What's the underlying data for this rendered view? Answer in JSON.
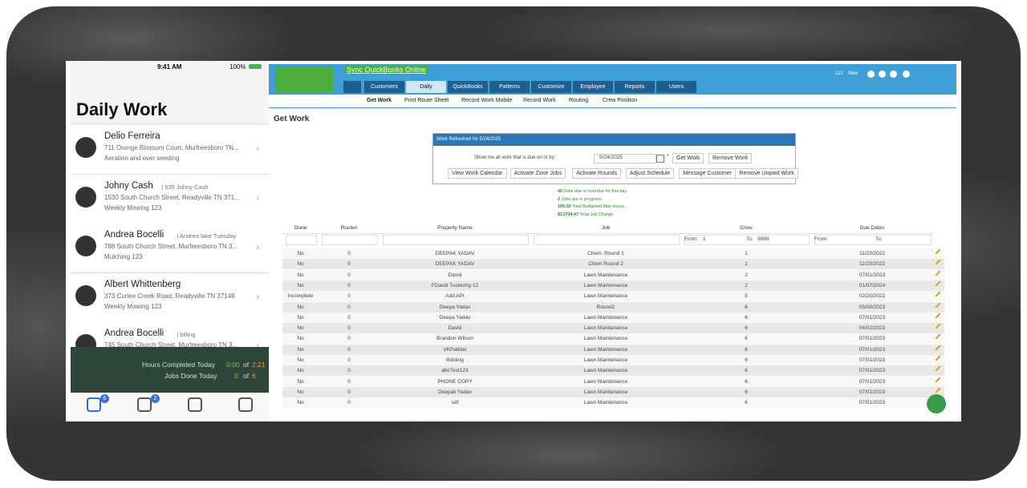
{
  "phone": {
    "status": {
      "time": "9:41 AM",
      "battery": "100%"
    },
    "title": "Daily Work",
    "items": [
      {
        "name": "Delio Ferreira",
        "note": "",
        "address": "711 Orange Blossom Court, Murfreesboro TN...",
        "service": "Aeration and over seeding"
      },
      {
        "name": "Johny  Cash",
        "note": "| 535 Johny Cash",
        "address": "1530 South Church Street, Readyville TN 371...",
        "service": "Weekly Mowing 123"
      },
      {
        "name": "Andrea Bocelli",
        "note": "| Andrea lake Tuesday",
        "address": "788 South Church Street, Murfreesboro TN 3...",
        "service": "Mulching 123"
      },
      {
        "name": "Albert Whittenberg",
        "note": "",
        "address": "373 Curlee Creek Road, Readyville TN 37149",
        "service": "Weekly Mowing 123"
      },
      {
        "name": "Andrea Bocelli",
        "note": "| billing",
        "address": "745 South Church Street, Murfreesboro TN 3...",
        "service": ""
      }
    ],
    "summary": {
      "hours_label": "Hours Completed Today",
      "hours_done": "0:00",
      "hours_of": "of",
      "hours_total": "2:21",
      "jobs_label": "Jobs Done Today",
      "jobs_done": "0",
      "jobs_of": "of",
      "jobs_total": "6"
    },
    "tab_badges": [
      "6",
      "2"
    ]
  },
  "web": {
    "sync_link": "Sync QuickBooks Online",
    "nav": [
      "Customers",
      "Daily",
      "QuickBooks",
      "Patterns",
      "Customize",
      "Employee",
      "Reports",
      "Users"
    ],
    "top_right": {
      "count": "112",
      "new": "New"
    },
    "subnav": [
      "Get Work",
      "Print Route Sheet",
      "Record Work Mobile",
      "Record Work",
      "Routing",
      "Crew Position"
    ],
    "page_title": "Get Work",
    "panel": {
      "header": "Work Refreshed for 5/24/2025",
      "prompt": "Show me all work that is due on or by:",
      "date": "5/24/2025",
      "required": "*",
      "buttons_row1": [
        "Get Work",
        "Remove Work"
      ],
      "buttons_row2": [
        "View Work Calendar",
        "Activate Zone Jobs",
        "Activate Rounds",
        "Adjust Schedule",
        "Message Customer",
        "Remove Unpaid Work"
      ]
    },
    "stats": [
      {
        "value": "40",
        "text": "Jobs due or overdue for this day."
      },
      {
        "value": "2",
        "text": "Jobs are in progress."
      },
      {
        "value": "105.50",
        "text": "Total Budgeted Man Hours."
      },
      {
        "value": "$13704.47",
        "text": "Total Job Charge."
      }
    ],
    "table": {
      "headers": [
        "Done",
        "Route#",
        "Property Name",
        "Job",
        "Crew",
        "Due Dates"
      ],
      "filters": {
        "crew_from_label": "From:",
        "crew_from": "1",
        "crew_to_label": "To:",
        "crew_to": "9999",
        "due_from_label": "From:",
        "due_to_label": "To:"
      },
      "rows": [
        [
          "No",
          "0",
          "DEEPAK YADAV",
          "Chem. Round 1",
          "1",
          "11/23/2022"
        ],
        [
          "No",
          "0",
          "DEEPAK YADAV",
          "Chem Round 2",
          "1",
          "11/23/2022"
        ],
        [
          "No",
          "0",
          "David",
          "Lawn Maintenance",
          "2",
          "07/01/2023"
        ],
        [
          "No",
          "0",
          "FDavid Tuckerhg 12",
          "Lawn Maintenance",
          "2",
          "01/07/2024"
        ],
        [
          "Incomplete",
          "0",
          "Add API",
          "Lawn Maintenance",
          "5",
          "02/20/2022"
        ],
        [
          "No",
          "0",
          "Deepa Yadav",
          "Round2",
          "6",
          "05/09/2023"
        ],
        [
          "No",
          "0",
          "Deepa Yadav",
          "Lawn Maintenance",
          "6",
          "07/01/2023"
        ],
        [
          "No",
          "0",
          "David",
          "Lawn Maintenance",
          "6",
          "04/02/2023"
        ],
        [
          "No",
          "0",
          "Brandon Wilson",
          "Lawn Maintenance",
          "6",
          "07/01/2023"
        ],
        [
          "No",
          "0",
          "VKPatidar",
          "Lawn Maintenance",
          "6",
          "07/01/2023"
        ],
        [
          "No",
          "0",
          "Bidding",
          "Lawn Maintenance",
          "6",
          "07/01/2023"
        ],
        [
          "No",
          "0",
          "abcTest123",
          "Lawn Maintenance",
          "6",
          "07/01/2023"
        ],
        [
          "No",
          "0",
          "PHONE COPY",
          "Lawn Maintenance",
          "6",
          "07/01/2023"
        ],
        [
          "No",
          "0",
          "Deepak Yadav",
          "Lawn Maintenance",
          "6",
          "07/01/2023"
        ],
        [
          "No",
          "0",
          "sdf",
          "Lawn Maintenance",
          "6",
          "07/01/2023"
        ]
      ]
    }
  }
}
